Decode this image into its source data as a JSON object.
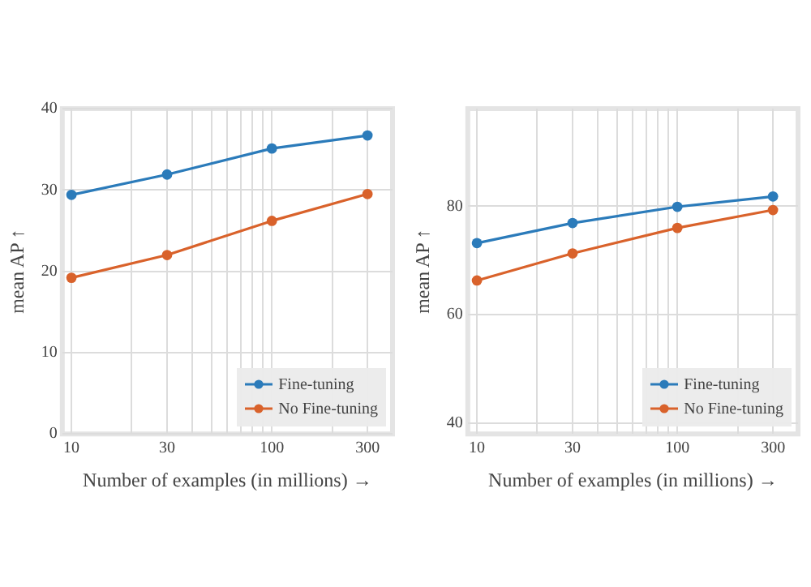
{
  "chart_data": [
    {
      "type": "line",
      "xlabel": "Number of examples (in millions) →",
      "ylabel": "mean AP ↑",
      "log": "x",
      "x": [
        10,
        30,
        100,
        300
      ],
      "series": [
        {
          "name": "Fine-tuning",
          "color": "#2b7bba",
          "values": [
            29.4,
            31.9,
            35.1,
            36.7
          ]
        },
        {
          "name": "No Fine-tuning",
          "color": "#d9622b",
          "values": [
            19.2,
            22.0,
            26.2,
            29.5
          ]
        }
      ],
      "xlim": [
        9,
        400
      ],
      "xticks": [
        10,
        {
          "value": 20,
          "label": null
        },
        30,
        {
          "value": 40,
          "label": null
        },
        {
          "value": 50,
          "label": null
        },
        {
          "value": 60,
          "label": null
        },
        {
          "value": 70,
          "label": null
        },
        {
          "value": 80,
          "label": null
        },
        {
          "value": 90,
          "label": null
        },
        100,
        {
          "value": 200,
          "label": null
        },
        300
      ],
      "ylim": [
        0,
        40
      ],
      "yticks": [
        0,
        10,
        20,
        30,
        40
      ],
      "grid": true,
      "legend": "bottom right",
      "marker": "circle",
      "line_style": "solid"
    },
    {
      "type": "line",
      "xlabel": "Number of examples (in millions) →",
      "ylabel": "mean AP ↑",
      "log": "x",
      "x": [
        10,
        30,
        100,
        300
      ],
      "series": [
        {
          "name": "Fine-tuning",
          "color": "#2b7bba",
          "values": [
            73.2,
            76.9,
            79.9,
            81.8
          ]
        },
        {
          "name": "No Fine-tuning",
          "color": "#d9622b",
          "values": [
            66.3,
            71.3,
            76.0,
            79.3
          ]
        }
      ],
      "xlim": [
        9,
        400
      ],
      "xticks": [
        10,
        {
          "value": 20,
          "label": null
        },
        30,
        {
          "value": 40,
          "label": null
        },
        {
          "value": 50,
          "label": null
        },
        {
          "value": 60,
          "label": null
        },
        {
          "value": 70,
          "label": null
        },
        {
          "value": 80,
          "label": null
        },
        {
          "value": 90,
          "label": null
        },
        100,
        {
          "value": 200,
          "label": null
        },
        300
      ],
      "ylim": [
        38,
        98
      ],
      "yticks": [
        40,
        60,
        80
      ],
      "grid": true,
      "legend": "bottom right",
      "marker": "circle",
      "line_style": "solid"
    }
  ]
}
